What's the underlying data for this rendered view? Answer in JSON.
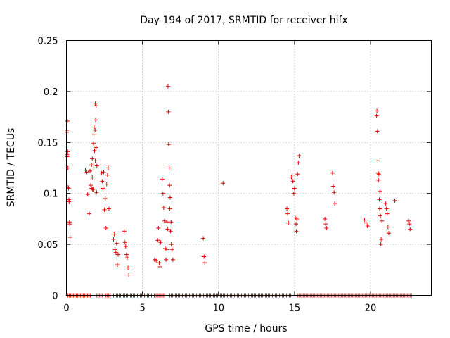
{
  "chart_data": {
    "type": "scatter",
    "title": "Day 194 of 2017, SRMTID for receiver hlfx",
    "xlabel": "GPS time / hours",
    "ylabel": "SRMTID / TECUs",
    "xlim": [
      0,
      24
    ],
    "ylim": [
      0,
      0.25
    ],
    "xticks": [
      0,
      5,
      10,
      15,
      20
    ],
    "xtick_labels": [
      "0",
      "5",
      "10",
      "15",
      "20"
    ],
    "yticks": [
      0,
      0.05,
      0.1,
      0.15,
      0.2,
      0.25
    ],
    "ytick_labels": [
      "0",
      "0.05",
      "0.1",
      "0.15",
      "0.2",
      "0.25"
    ],
    "grid": true,
    "legend": "none",
    "marker": "plus",
    "color": "#e00000",
    "series": [
      {
        "x": [
          0.02,
          0.03,
          0.04,
          0.05,
          0.06,
          0.08,
          0.1,
          0.12,
          0.14,
          0.16,
          0.18,
          0.2,
          0.22,
          0.24,
          1.25,
          1.35,
          1.4,
          1.5,
          1.55,
          1.6,
          1.65,
          1.65,
          1.7,
          1.7,
          1.72,
          1.75,
          1.78,
          1.8,
          1.8,
          1.82,
          1.85,
          1.88,
          1.9,
          1.9,
          1.92,
          1.95,
          1.95,
          1.98,
          2.0,
          2.3,
          2.35,
          2.4,
          2.45,
          2.5,
          2.55,
          2.6,
          2.65,
          2.7,
          2.75,
          2.8,
          3.1,
          3.15,
          3.2,
          3.25,
          3.3,
          3.35,
          3.4,
          3.8,
          3.85,
          3.9,
          3.95,
          4.0,
          4.05,
          4.1,
          5.8,
          5.9,
          6.0,
          6.05,
          6.1,
          6.15,
          6.2,
          6.3,
          6.35,
          6.4,
          6.45,
          6.5,
          6.55,
          6.6,
          6.62,
          6.65,
          6.68,
          6.7,
          6.72,
          6.75,
          6.78,
          6.8,
          6.82,
          6.85,
          6.88,
          6.9,
          6.95,
          7.0,
          9.0,
          9.05,
          9.1,
          10.3,
          14.5,
          14.55,
          14.6,
          14.8,
          14.85,
          14.9,
          14.95,
          15.0,
          15.05,
          15.1,
          15.12,
          15.15,
          15.2,
          15.25,
          15.3,
          17.0,
          17.05,
          17.1,
          17.5,
          17.55,
          17.6,
          17.65,
          19.6,
          19.7,
          19.8,
          20.4,
          20.42,
          20.45,
          20.48,
          20.5,
          20.52,
          20.55,
          20.58,
          20.6,
          20.62,
          20.65,
          20.68,
          20.7,
          20.75,
          21.0,
          21.05,
          21.1,
          21.15,
          21.2,
          21.6,
          22.5,
          22.55,
          22.6
        ],
        "y": [
          0.16,
          0.162,
          0.138,
          0.136,
          0.171,
          0.141,
          0.125,
          0.106,
          0.105,
          0.094,
          0.092,
          0.072,
          0.07,
          0.057,
          0.123,
          0.121,
          0.099,
          0.08,
          0.122,
          0.108,
          0.128,
          0.105,
          0.116,
          0.134,
          0.104,
          0.104,
          0.149,
          0.125,
          0.158,
          0.165,
          0.142,
          0.162,
          0.188,
          0.132,
          0.172,
          0.186,
          0.145,
          0.101,
          0.127,
          0.12,
          0.112,
          0.105,
          0.121,
          0.084,
          0.095,
          0.066,
          0.109,
          0.118,
          0.125,
          0.085,
          0.055,
          0.06,
          0.045,
          0.042,
          0.051,
          0.03,
          0.04,
          0.063,
          0.052,
          0.048,
          0.04,
          0.037,
          0.027,
          0.02,
          0.035,
          0.034,
          0.054,
          0.066,
          0.032,
          0.028,
          0.052,
          0.114,
          0.1,
          0.086,
          0.073,
          0.046,
          0.035,
          0.045,
          0.072,
          0.065,
          0.205,
          0.18,
          0.148,
          0.125,
          0.108,
          0.085,
          0.096,
          0.063,
          0.072,
          0.05,
          0.045,
          0.035,
          0.056,
          0.038,
          0.032,
          0.11,
          0.085,
          0.08,
          0.071,
          0.116,
          0.118,
          0.112,
          0.1,
          0.105,
          0.076,
          0.07,
          0.063,
          0.075,
          0.119,
          0.13,
          0.137,
          0.075,
          0.07,
          0.066,
          0.12,
          0.107,
          0.101,
          0.09,
          0.074,
          0.071,
          0.068,
          0.176,
          0.181,
          0.161,
          0.132,
          0.12,
          0.113,
          0.119,
          0.094,
          0.085,
          0.102,
          0.078,
          0.05,
          0.055,
          0.073,
          0.09,
          0.085,
          0.08,
          0.067,
          0.061,
          0.093,
          0.073,
          0.07,
          0.065
        ]
      }
    ],
    "zero_band": {
      "y": 0,
      "segments": [
        [
          0.1,
          1.6
        ],
        [
          2.0,
          2.4
        ],
        [
          2.6,
          2.9
        ],
        [
          3.1,
          5.8
        ],
        [
          5.9,
          6.5
        ],
        [
          6.8,
          14.9
        ],
        [
          15.2,
          22.7
        ]
      ]
    }
  }
}
